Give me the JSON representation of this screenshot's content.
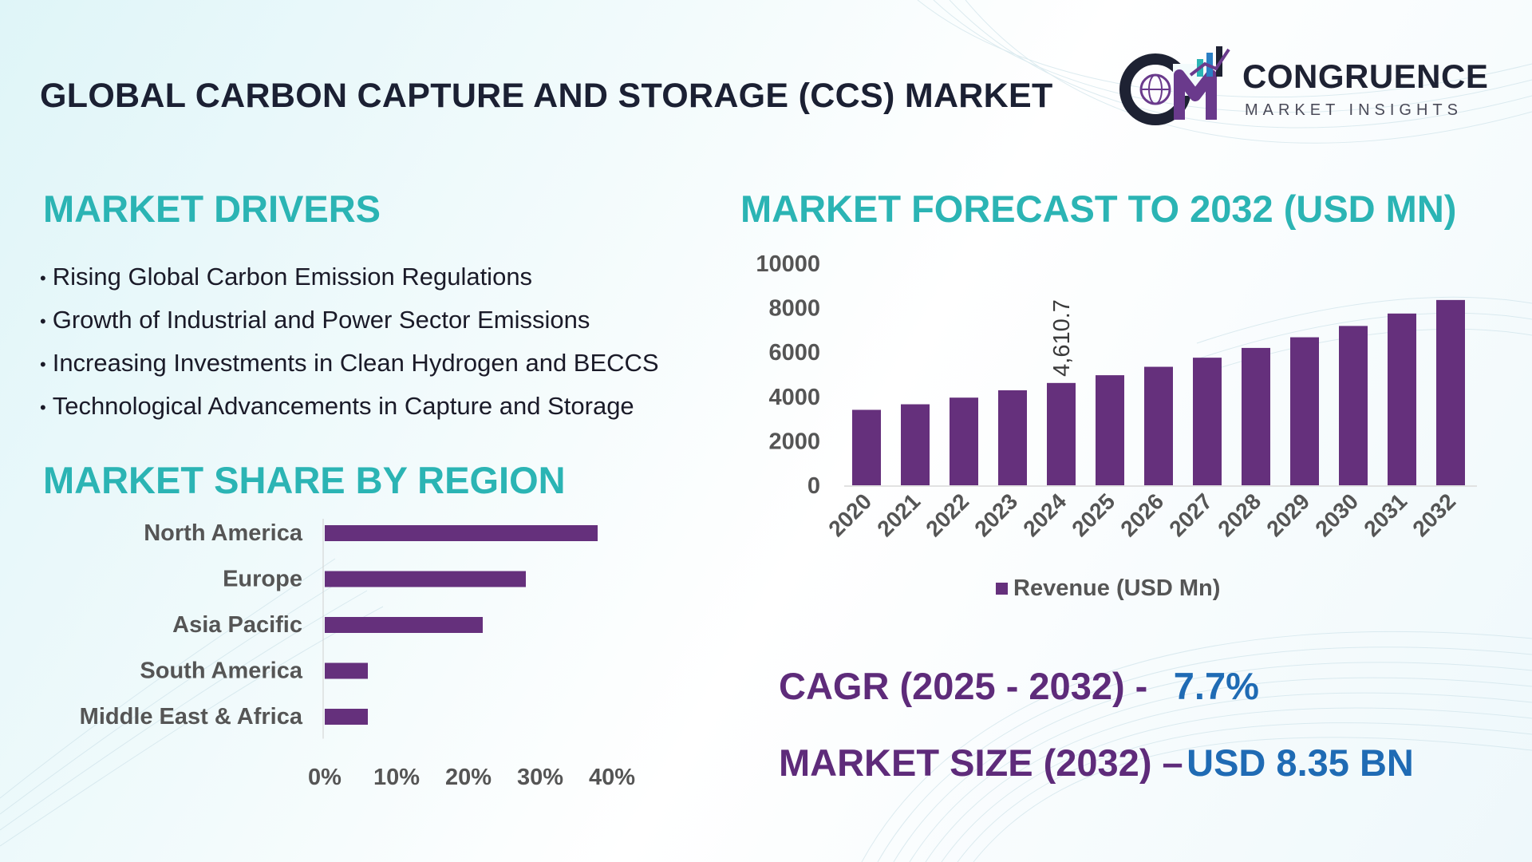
{
  "title": "GLOBAL CARBON CAPTURE AND STORAGE (CCS) MARKET",
  "logo": {
    "name": "CONGRUENCE",
    "tagline": "MARKET INSIGHTS",
    "mark_letters": "CM"
  },
  "drivers": {
    "heading": "MARKET DRIVERS",
    "items": [
      "Rising Global Carbon Emission Regulations",
      "Growth of Industrial and Power Sector Emissions",
      "Increasing Investments in Clean Hydrogen and BECCS",
      "Technological Advancements in Capture and Storage"
    ]
  },
  "region": {
    "heading": "MARKET SHARE BY REGION"
  },
  "forecast": {
    "heading": "MARKET FORECAST TO 2032 (USD MN)"
  },
  "kpis": {
    "cagr_label": "CAGR (2025 - 2032) -",
    "cagr_value": "7.7%",
    "size_label": "MARKET SIZE (2032) –",
    "size_value": "USD 8.35 BN"
  },
  "colors": {
    "bar": "#65307c",
    "heading": "#2bb4b4",
    "kpi_label": "#5e2b7a",
    "kpi_value": "#1f6bb4",
    "axis_text": "#555555"
  },
  "chart_data": [
    {
      "type": "bar",
      "orientation": "horizontal",
      "categories": [
        "North America",
        "Europe",
        "Asia Pacific",
        "South America",
        "Middle East & Africa"
      ],
      "values": [
        38,
        28,
        22,
        6,
        6
      ],
      "xlim": [
        0,
        40
      ],
      "xticks": [
        "0%",
        "10%",
        "20%",
        "30%",
        "40%"
      ],
      "grid": false
    },
    {
      "type": "bar",
      "categories": [
        "2020",
        "2021",
        "2022",
        "2023",
        "2024",
        "2025",
        "2026",
        "2027",
        "2028",
        "2029",
        "2030",
        "2031",
        "2032"
      ],
      "series": [
        {
          "name": "Revenue (USD Mn)",
          "values": [
            3400,
            3650,
            3950,
            4280,
            4610.7,
            4960,
            5340,
            5750,
            6190,
            6670,
            7180,
            7740,
            8350
          ]
        }
      ],
      "data_labels": [
        {
          "index": 4,
          "text": "4,610.7"
        }
      ],
      "ylim": [
        0,
        10000
      ],
      "yticks": [
        "0",
        "2000",
        "4000",
        "6000",
        "8000",
        "10000"
      ],
      "legend": "bottom",
      "grid": false
    }
  ]
}
